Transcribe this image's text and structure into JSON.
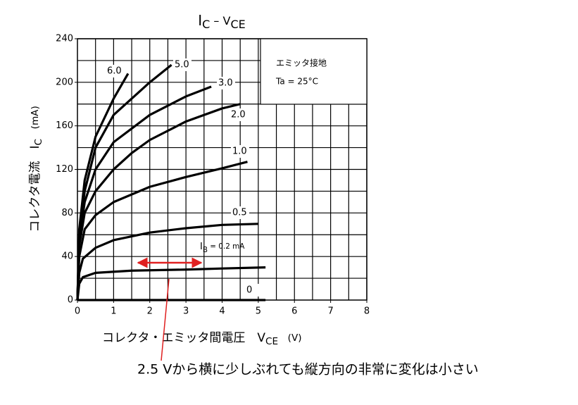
{
  "chart_data": {
    "type": "line",
    "title": {
      "main": "I",
      "sub": "C",
      "mid": " – V",
      "sub2": "CE"
    },
    "x_label": {
      "main": "コレクタ・エミッタ間電圧　V",
      "sub": "CE",
      "rest": "　(V)"
    },
    "y_label": {
      "main": "コレクタ電流　I",
      "sub": "C",
      "rest": "　(mA)"
    },
    "legend_box": [
      "エミッタ接地",
      "Ta = 25°C"
    ],
    "annotation": "2.5 Vから横に少しぶれても縦方向の非常に変化は小さい",
    "xlim": [
      0,
      8
    ],
    "ylim": [
      0,
      240
    ],
    "xticks": [
      0,
      1,
      2,
      3,
      4,
      5,
      6,
      7,
      8
    ],
    "yticks": [
      0,
      40,
      80,
      120,
      160,
      200,
      240
    ],
    "xgrid": [
      0.5,
      1,
      1.5,
      2,
      2.5,
      3,
      3.5,
      4,
      4.5,
      5,
      5.5,
      6,
      6.5,
      7,
      7.5,
      8
    ],
    "ygrid": [
      20,
      40,
      60,
      80,
      100,
      120,
      140,
      160,
      180,
      200,
      220,
      240
    ],
    "grid": true,
    "color": "#000000",
    "series": [
      {
        "name": "0",
        "x": [
          0,
          5.2
        ],
        "values": [
          0,
          0
        ]
      },
      {
        "name_prefix": [
          "I",
          "B"
        ],
        "name": " = 0.2 mA",
        "x": [
          0,
          0.05,
          0.15,
          0.5,
          1.5,
          3,
          4,
          5.2
        ],
        "values": [
          0,
          15,
          21,
          25,
          27,
          28,
          29,
          30
        ]
      },
      {
        "name": "0.5",
        "x": [
          0,
          0.05,
          0.15,
          0.5,
          1,
          2,
          3,
          4,
          5
        ],
        "values": [
          0,
          25,
          38,
          48,
          55,
          62,
          66,
          69,
          70
        ]
      },
      {
        "name": "1.0",
        "x": [
          0,
          0.05,
          0.2,
          0.5,
          1,
          2,
          3,
          4,
          4.7
        ],
        "values": [
          0,
          40,
          65,
          78,
          90,
          104,
          113,
          121,
          127
        ]
      },
      {
        "name": "2.0",
        "x": [
          0,
          0.05,
          0.2,
          0.5,
          1,
          1.5,
          2,
          3,
          4,
          4.5
        ],
        "values": [
          0,
          50,
          80,
          100,
          120,
          135,
          147,
          164,
          176,
          180
        ]
      },
      {
        "name": "3.0",
        "x": [
          0,
          0.05,
          0.2,
          0.5,
          1,
          2,
          3,
          3.7
        ],
        "values": [
          0,
          55,
          90,
          120,
          145,
          170,
          187,
          196
        ]
      },
      {
        "name": "5.0",
        "x": [
          0,
          0.05,
          0.2,
          0.5,
          1,
          2,
          2.6
        ],
        "values": [
          0,
          60,
          100,
          140,
          170,
          200,
          216
        ]
      },
      {
        "name": "6.0",
        "x": [
          0,
          0.05,
          0.2,
          0.5,
          1,
          1.4
        ],
        "values": [
          0,
          65,
          110,
          150,
          185,
          208
        ]
      }
    ]
  }
}
